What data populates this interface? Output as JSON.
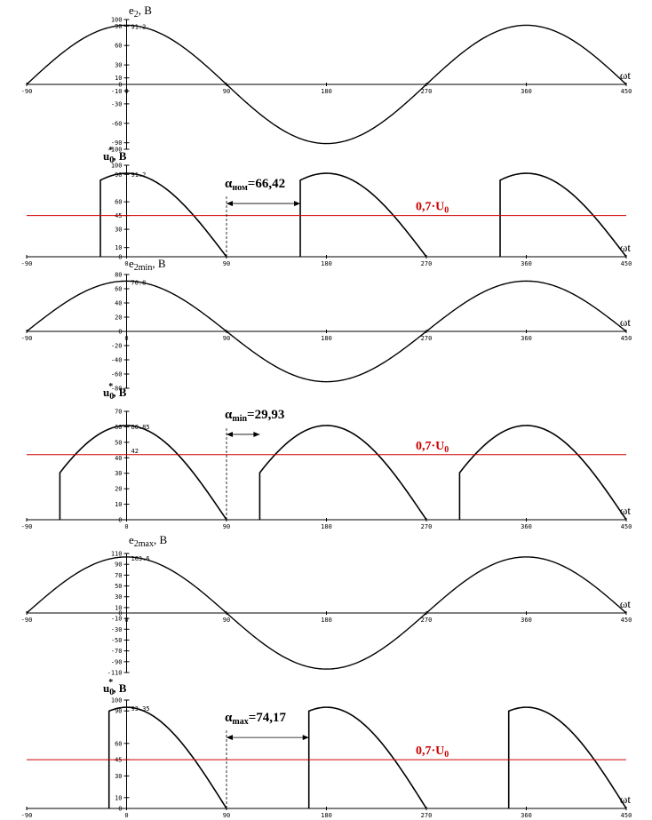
{
  "chart_data": [
    {
      "type": "line",
      "ylabel": "e2, B",
      "xlabel": "ωt",
      "xlim": [
        -90,
        450
      ],
      "ylim": [
        -100,
        100
      ],
      "yticks": [
        100,
        90,
        60,
        30,
        10,
        0,
        -10,
        -30,
        -60,
        -90,
        -100
      ],
      "xticks": [
        -90,
        0,
        90,
        180,
        270,
        360,
        450
      ],
      "ytick_labels": [
        "100",
        "90",
        "60",
        "30",
        "10",
        "0",
        "-10",
        "-30",
        "-60",
        "-90",
        "-100"
      ],
      "xtick_labels": [
        "-90",
        "0",
        "90",
        "180",
        "270",
        "360",
        "450"
      ],
      "series": [
        {
          "kind": "cos",
          "amplitude": 91.2,
          "color": "#000000"
        }
      ],
      "peak_label": "91.2"
    },
    {
      "type": "line",
      "ylabel": "u0*, B",
      "xlabel": "ωt",
      "xlim": [
        -90,
        450
      ],
      "ylim": [
        0,
        100
      ],
      "yticks": [
        100,
        90,
        60,
        45,
        30,
        10,
        0
      ],
      "xticks": [
        -90,
        0,
        90,
        180,
        270,
        360,
        450
      ],
      "ytick_labels": [
        "100",
        "90",
        "60",
        "45",
        "30",
        "10",
        "0"
      ],
      "xtick_labels": [
        "-90",
        "0",
        "90",
        "180",
        "270",
        "360",
        "450"
      ],
      "series": [
        {
          "kind": "rect",
          "amplitude": 91.2,
          "start_angle": 156.42,
          "color": "#000000"
        }
      ],
      "reference": {
        "value": 45,
        "label": "0,7·U0",
        "color": "#cc0000"
      },
      "alpha_label": "αном=66,42",
      "alpha_range": [
        90,
        156.42
      ],
      "peak_label": "91.2"
    },
    {
      "type": "line",
      "ylabel": "e2min, B",
      "xlabel": "ωt",
      "xlim": [
        -90,
        450
      ],
      "ylim": [
        -80,
        80
      ],
      "yticks": [
        80,
        60,
        40,
        20,
        0,
        -20,
        -40,
        -60,
        -80
      ],
      "xticks": [
        -90,
        0,
        90,
        180,
        270,
        360,
        450
      ],
      "ytick_labels": [
        "80",
        "60",
        "40",
        "20",
        "0",
        "-20",
        "-40",
        "-60",
        "-80"
      ],
      "xtick_labels": [
        "-90",
        "0",
        "90",
        "180",
        "270",
        "360",
        "450"
      ],
      "series": [
        {
          "kind": "cos",
          "amplitude": 70.8,
          "color": "#000000"
        }
      ],
      "peak_label": "70.8"
    },
    {
      "type": "line",
      "ylabel": "u0*, B",
      "xlabel": "ωt",
      "xlim": [
        -90,
        450
      ],
      "ylim": [
        0,
        70
      ],
      "yticks": [
        70,
        60,
        50,
        40,
        30,
        20,
        10,
        0
      ],
      "xticks": [
        -90,
        0,
        90,
        180,
        270,
        360,
        450
      ],
      "ytick_labels": [
        "70",
        "60",
        "50",
        "40",
        "30",
        "20",
        "10",
        "0"
      ],
      "xtick_labels": [
        "-90",
        "0",
        "90",
        "180",
        "270",
        "360",
        "450"
      ],
      "series": [
        {
          "kind": "rect",
          "amplitude": 60.85,
          "start_angle": 119.93,
          "color": "#000000"
        }
      ],
      "reference": {
        "value": 42,
        "label": "0,7·U0",
        "color": "#cc0000"
      },
      "alpha_label": "αmin=29,93",
      "alpha_range": [
        90,
        119.93
      ],
      "peak_label": "60.85",
      "ref_tick_label": "42"
    },
    {
      "type": "line",
      "ylabel": "e2max, B",
      "xlabel": "ωt",
      "xlim": [
        -90,
        450
      ],
      "ylim": [
        -110,
        110
      ],
      "yticks": [
        110,
        90,
        70,
        50,
        30,
        10,
        0,
        -10,
        -30,
        -50,
        -70,
        -90,
        -110
      ],
      "xticks": [
        -90,
        0,
        90,
        180,
        270,
        360,
        450
      ],
      "ytick_labels": [
        "110",
        "90",
        "70",
        "50",
        "30",
        "10",
        "0",
        "-10",
        "-30",
        "-50",
        "-70",
        "-90",
        "-110"
      ],
      "xtick_labels": [
        "-90",
        "0",
        "90",
        "180",
        "270",
        "360",
        "450"
      ],
      "series": [
        {
          "kind": "cos",
          "amplitude": 103.6,
          "color": "#000000"
        }
      ],
      "peak_label": "103.6"
    },
    {
      "type": "line",
      "ylabel": "u0*, B",
      "xlabel": "ωt",
      "xlim": [
        -90,
        450
      ],
      "ylim": [
        0,
        100
      ],
      "yticks": [
        100,
        90,
        60,
        45,
        30,
        10,
        0
      ],
      "xticks": [
        -90,
        0,
        90,
        180,
        270,
        360,
        450
      ],
      "ytick_labels": [
        "100",
        "90",
        "60",
        "45",
        "30",
        "10",
        "0"
      ],
      "xtick_labels": [
        "-90",
        "0",
        "90",
        "180",
        "270",
        "360",
        "450"
      ],
      "series": [
        {
          "kind": "rect",
          "amplitude": 93.35,
          "start_angle": 164.17,
          "color": "#000000"
        }
      ],
      "reference": {
        "value": 45,
        "label": "0,7·U0",
        "color": "#cc0000"
      },
      "alpha_label": "αmax=74,17",
      "alpha_range": [
        90,
        164.17
      ],
      "peak_label": "93.35"
    }
  ]
}
